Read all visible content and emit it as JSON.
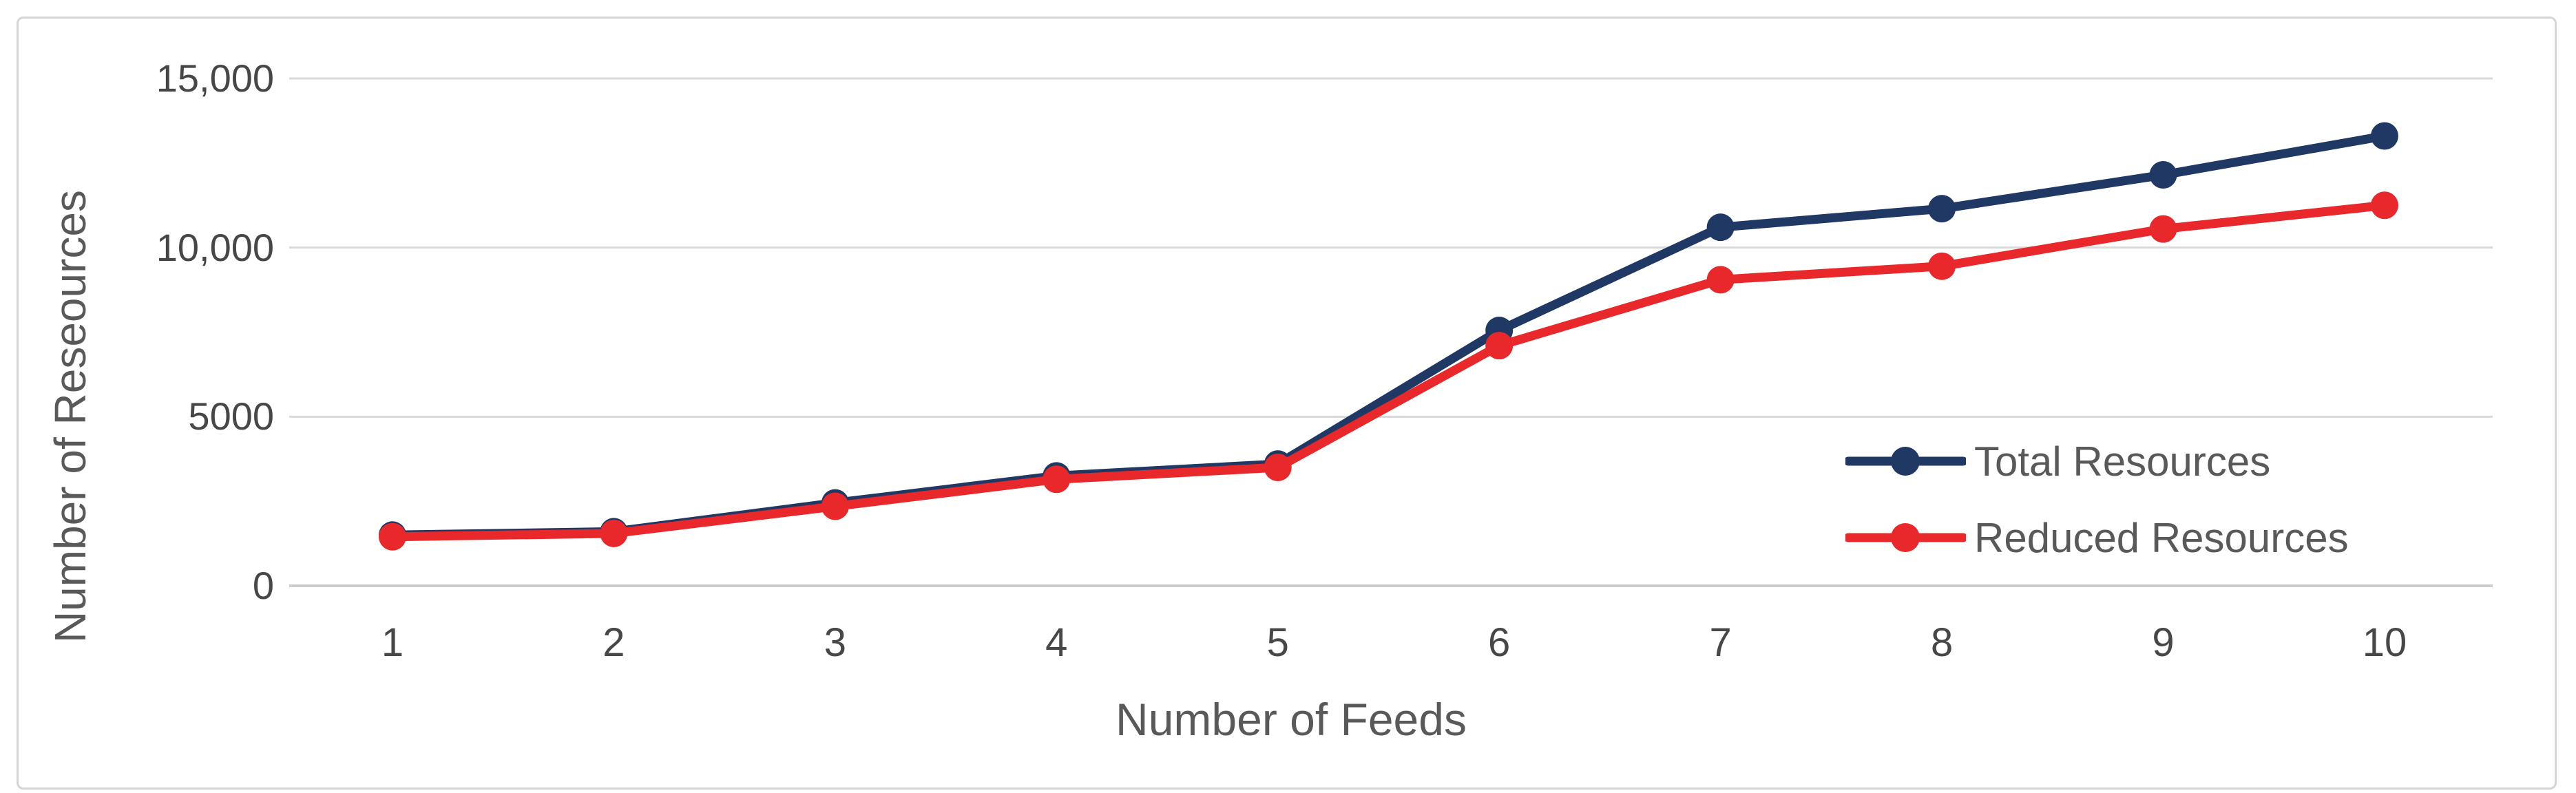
{
  "figure": {
    "background": "#ffffff",
    "frame_border_color": "#d5d5d5"
  },
  "chart_data": {
    "type": "line",
    "title": "",
    "categories": [
      "1",
      "2",
      "3",
      "4",
      "5",
      "6",
      "7",
      "8",
      "9",
      "10"
    ],
    "series": [
      {
        "name": "Total Resources",
        "color": "#1f3864",
        "values": [
          1500,
          1600,
          2450,
          3250,
          3600,
          7550,
          10600,
          11150,
          12150,
          13300
        ]
      },
      {
        "name": "Reduced Resources",
        "color": "#e8282b",
        "values": [
          1450,
          1550,
          2350,
          3150,
          3500,
          7100,
          9050,
          9450,
          10550,
          11250
        ]
      }
    ],
    "xlabel": "Number of Feeds",
    "ylabel": "Number of Reseources",
    "ylim": [
      0,
      15000
    ],
    "y_ticks": [
      {
        "value": 15000,
        "label": "15,000"
      },
      {
        "value": 10000,
        "label": "10,000"
      },
      {
        "value": 5000,
        "label": "5000"
      },
      {
        "value": 0,
        "label": "0"
      }
    ],
    "x_tick_values": [
      1,
      2,
      3,
      4,
      5,
      6,
      7,
      8,
      9,
      10
    ],
    "grid": "horizontal",
    "grid_color": "#d9d9d9",
    "axis_line_color": "#cccccc",
    "marker": "circle",
    "legend": {
      "position": "inside-right",
      "entries": [
        "Total Resources",
        "Reduced Resources"
      ]
    },
    "text_colors": {
      "ticks": "#474747",
      "titles": "#595959",
      "legend": "#595959"
    }
  }
}
